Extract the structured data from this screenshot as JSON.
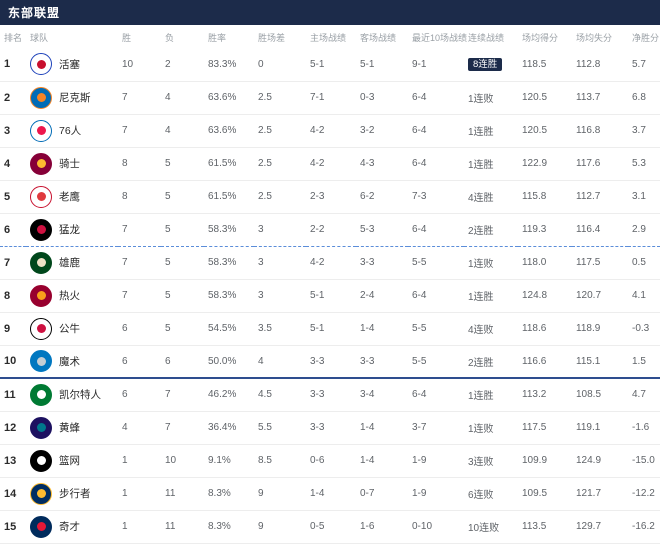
{
  "header": {
    "title": "东部联盟"
  },
  "colors": {
    "header_bg": "#1c2b4a",
    "dashed_separator": "#5b8dd9",
    "solid_separator": "#2e4d8f",
    "streak_badge_bg": "#1c2b4a"
  },
  "table": {
    "columns": [
      {
        "key": "rank",
        "label": "排名"
      },
      {
        "key": "team",
        "label": "球队"
      },
      {
        "key": "wins",
        "label": "胜"
      },
      {
        "key": "losses",
        "label": "负"
      },
      {
        "key": "pct",
        "label": "胜率"
      },
      {
        "key": "gb",
        "label": "胜场差"
      },
      {
        "key": "home",
        "label": "主场战绩"
      },
      {
        "key": "away",
        "label": "客场战绩"
      },
      {
        "key": "last10",
        "label": "最近10场战绩"
      },
      {
        "key": "streak",
        "label": "连续战绩"
      },
      {
        "key": "ppg",
        "label": "场均得分"
      },
      {
        "key": "opp_ppg",
        "label": "场均失分"
      },
      {
        "key": "diff",
        "label": "净胜分"
      }
    ],
    "dashed_separator_after_rank": 6,
    "solid_separator_after_rank": 10,
    "rows": [
      {
        "key": "pistons",
        "rank": "1",
        "team": "活塞",
        "logo_bg": "#ffffff",
        "logo_ring": "#1d42ba",
        "logo_dot": "#c8102e",
        "wins": "10",
        "losses": "2",
        "pct": "83.3%",
        "gb": "0",
        "home": "5-1",
        "away": "5-1",
        "last10": "9-1",
        "streak": "8连胜",
        "streak_badge": true,
        "ppg": "118.5",
        "opp_ppg": "112.8",
        "diff": "5.7"
      },
      {
        "key": "knicks",
        "rank": "2",
        "team": "尼克斯",
        "logo_bg": "#006bb6",
        "logo_ring": "#f58426",
        "logo_dot": "#f58426",
        "wins": "7",
        "losses": "4",
        "pct": "63.6%",
        "gb": "2.5",
        "home": "7-1",
        "away": "0-3",
        "last10": "6-4",
        "streak": "1连败",
        "ppg": "120.5",
        "opp_ppg": "113.7",
        "diff": "6.8"
      },
      {
        "key": "76ers",
        "rank": "3",
        "team": "76人",
        "logo_bg": "#ffffff",
        "logo_ring": "#006bb6",
        "logo_dot": "#ed174c",
        "wins": "7",
        "losses": "4",
        "pct": "63.6%",
        "gb": "2.5",
        "home": "4-2",
        "away": "3-2",
        "last10": "6-4",
        "streak": "1连胜",
        "ppg": "120.5",
        "opp_ppg": "116.8",
        "diff": "3.7"
      },
      {
        "key": "cavaliers",
        "rank": "4",
        "team": "骑士",
        "logo_bg": "#860038",
        "logo_ring": "#860038",
        "logo_dot": "#fdbb30",
        "wins": "8",
        "losses": "5",
        "pct": "61.5%",
        "gb": "2.5",
        "home": "4-2",
        "away": "4-3",
        "last10": "6-4",
        "streak": "1连胜",
        "ppg": "122.9",
        "opp_ppg": "117.6",
        "diff": "5.3"
      },
      {
        "key": "hawks",
        "rank": "5",
        "team": "老鹰",
        "logo_bg": "#ffffff",
        "logo_ring": "#c8102e",
        "logo_dot": "#e03a3e",
        "wins": "8",
        "losses": "5",
        "pct": "61.5%",
        "gb": "2.5",
        "home": "2-3",
        "away": "6-2",
        "last10": "7-3",
        "streak": "4连胜",
        "ppg": "115.8",
        "opp_ppg": "112.7",
        "diff": "3.1"
      },
      {
        "key": "raptors",
        "rank": "6",
        "team": "猛龙",
        "logo_bg": "#000000",
        "logo_ring": "#000000",
        "logo_dot": "#ce1141",
        "wins": "7",
        "losses": "5",
        "pct": "58.3%",
        "gb": "3",
        "home": "2-2",
        "away": "5-3",
        "last10": "6-4",
        "streak": "2连胜",
        "ppg": "119.3",
        "opp_ppg": "116.4",
        "diff": "2.9"
      },
      {
        "key": "bucks",
        "rank": "7",
        "team": "雄鹿",
        "logo_bg": "#00471b",
        "logo_ring": "#00471b",
        "logo_dot": "#eee1c6",
        "wins": "7",
        "losses": "5",
        "pct": "58.3%",
        "gb": "3",
        "home": "4-2",
        "away": "3-3",
        "last10": "5-5",
        "streak": "1连败",
        "ppg": "118.0",
        "opp_ppg": "117.5",
        "diff": "0.5"
      },
      {
        "key": "heat",
        "rank": "8",
        "team": "热火",
        "logo_bg": "#98002e",
        "logo_ring": "#98002e",
        "logo_dot": "#f9a01b",
        "wins": "7",
        "losses": "5",
        "pct": "58.3%",
        "gb": "3",
        "home": "5-1",
        "away": "2-4",
        "last10": "6-4",
        "streak": "1连胜",
        "ppg": "124.8",
        "opp_ppg": "120.7",
        "diff": "4.1"
      },
      {
        "key": "bulls",
        "rank": "9",
        "team": "公牛",
        "logo_bg": "#ffffff",
        "logo_ring": "#000000",
        "logo_dot": "#ce1141",
        "wins": "6",
        "losses": "5",
        "pct": "54.5%",
        "gb": "3.5",
        "home": "5-1",
        "away": "1-4",
        "last10": "5-5",
        "streak": "4连败",
        "ppg": "118.6",
        "opp_ppg": "118.9",
        "diff": "-0.3"
      },
      {
        "key": "magic",
        "rank": "10",
        "team": "魔术",
        "logo_bg": "#0077c0",
        "logo_ring": "#0077c0",
        "logo_dot": "#c4ced4",
        "wins": "6",
        "losses": "6",
        "pct": "50.0%",
        "gb": "4",
        "home": "3-3",
        "away": "3-3",
        "last10": "5-5",
        "streak": "2连胜",
        "ppg": "116.6",
        "opp_ppg": "115.1",
        "diff": "1.5"
      },
      {
        "key": "celtics",
        "rank": "11",
        "team": "凯尔特人",
        "logo_bg": "#007a33",
        "logo_ring": "#007a33",
        "logo_dot": "#ffffff",
        "wins": "6",
        "losses": "7",
        "pct": "46.2%",
        "gb": "4.5",
        "home": "3-3",
        "away": "3-4",
        "last10": "6-4",
        "streak": "1连胜",
        "ppg": "113.2",
        "opp_ppg": "108.5",
        "diff": "4.7"
      },
      {
        "key": "hornets",
        "rank": "12",
        "team": "黄蜂",
        "logo_bg": "#1d1160",
        "logo_ring": "#1d1160",
        "logo_dot": "#00788c",
        "wins": "4",
        "losses": "7",
        "pct": "36.4%",
        "gb": "5.5",
        "home": "3-3",
        "away": "1-4",
        "last10": "3-7",
        "streak": "1连败",
        "ppg": "117.5",
        "opp_ppg": "119.1",
        "diff": "-1.6"
      },
      {
        "key": "nets",
        "rank": "13",
        "team": "篮网",
        "logo_bg": "#000000",
        "logo_ring": "#000000",
        "logo_dot": "#ffffff",
        "wins": "1",
        "losses": "10",
        "pct": "9.1%",
        "gb": "8.5",
        "home": "0-6",
        "away": "1-4",
        "last10": "1-9",
        "streak": "3连败",
        "ppg": "109.9",
        "opp_ppg": "124.9",
        "diff": "-15.0"
      },
      {
        "key": "pacers",
        "rank": "14",
        "team": "步行者",
        "logo_bg": "#002d62",
        "logo_ring": "#fdbb30",
        "logo_dot": "#fdbb30",
        "wins": "1",
        "losses": "11",
        "pct": "8.3%",
        "gb": "9",
        "home": "1-4",
        "away": "0-7",
        "last10": "1-9",
        "streak": "6连败",
        "ppg": "109.5",
        "opp_ppg": "121.7",
        "diff": "-12.2"
      },
      {
        "key": "wizards",
        "rank": "15",
        "team": "奇才",
        "logo_bg": "#002b5c",
        "logo_ring": "#002b5c",
        "logo_dot": "#e31837",
        "wins": "1",
        "losses": "11",
        "pct": "8.3%",
        "gb": "9",
        "home": "0-5",
        "away": "1-6",
        "last10": "0-10",
        "streak": "10连败",
        "ppg": "113.5",
        "opp_ppg": "129.7",
        "diff": "-16.2"
      }
    ]
  }
}
